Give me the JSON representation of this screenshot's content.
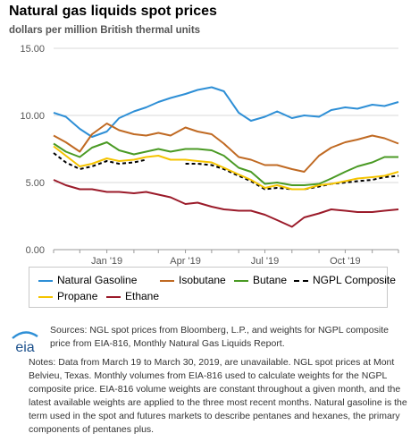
{
  "header": {
    "title": "Natural gas liquids spot prices",
    "subtitle": "dollars per million British thermal units"
  },
  "chart_data": {
    "type": "line",
    "title": "Natural gas liquids spot prices",
    "ylabel": "dollars per million British thermal units",
    "ylim": [
      0,
      15
    ],
    "yticks": [
      "0.00",
      "5.00",
      "10.00",
      "15.00"
    ],
    "xticks": [
      "Jan '19",
      "Apr '19",
      "Jul '19",
      "Oct '19"
    ],
    "grid": true,
    "legend_position": "bottom",
    "x": [
      "2018-11-01",
      "2018-11-15",
      "2018-12-01",
      "2018-12-15",
      "2019-01-01",
      "2019-01-15",
      "2019-02-01",
      "2019-02-15",
      "2019-03-01",
      "2019-03-15",
      "2019-04-01",
      "2019-04-15",
      "2019-05-01",
      "2019-05-15",
      "2019-06-01",
      "2019-06-15",
      "2019-07-01",
      "2019-07-15",
      "2019-08-01",
      "2019-08-15",
      "2019-09-01",
      "2019-09-15",
      "2019-10-01",
      "2019-10-15",
      "2019-11-01",
      "2019-11-15",
      "2019-12-01"
    ],
    "series": [
      {
        "name": "Natural Gasoline",
        "color": "#2e8fd6",
        "dash": "",
        "values": [
          10.2,
          9.9,
          9.0,
          8.4,
          8.8,
          9.8,
          10.3,
          10.6,
          11.0,
          11.3,
          11.6,
          11.9,
          12.1,
          11.8,
          10.2,
          9.6,
          9.9,
          10.3,
          9.8,
          10.0,
          9.9,
          10.4,
          10.6,
          10.5,
          10.8,
          10.7,
          11.0
        ]
      },
      {
        "name": "Isobutane",
        "color": "#c06a23",
        "dash": "",
        "values": [
          8.5,
          8.0,
          7.3,
          8.6,
          9.4,
          8.9,
          8.6,
          8.5,
          8.7,
          8.5,
          9.1,
          8.8,
          8.6,
          7.9,
          6.9,
          6.7,
          6.3,
          6.3,
          6.0,
          5.8,
          7.0,
          7.6,
          8.0,
          8.2,
          8.5,
          8.3,
          7.9
        ]
      },
      {
        "name": "Butane",
        "color": "#4a9a24",
        "dash": "",
        "values": [
          7.9,
          7.3,
          6.9,
          7.6,
          8.0,
          7.4,
          7.1,
          7.3,
          7.5,
          7.3,
          7.5,
          7.5,
          7.4,
          7.0,
          6.1,
          5.8,
          4.9,
          5.0,
          4.8,
          4.8,
          4.9,
          5.3,
          5.8,
          6.2,
          6.5,
          6.9,
          6.9
        ]
      },
      {
        "name": "NGPL Composite",
        "color": "#000000",
        "dash": "4,3",
        "values": [
          7.2,
          6.5,
          6.0,
          6.2,
          6.6,
          6.4,
          6.5,
          6.7,
          null,
          null,
          6.4,
          6.4,
          6.3,
          6.0,
          5.5,
          5.1,
          4.5,
          4.6,
          4.5,
          4.5,
          4.7,
          4.9,
          5.0,
          5.1,
          5.2,
          5.4,
          5.5
        ]
      },
      {
        "name": "Propane",
        "color": "#f5c400",
        "dash": "",
        "values": [
          7.7,
          7.0,
          6.2,
          6.4,
          6.8,
          6.6,
          6.7,
          6.9,
          7.0,
          6.7,
          6.7,
          6.6,
          6.5,
          6.1,
          5.6,
          5.2,
          4.6,
          4.8,
          4.5,
          4.5,
          4.8,
          4.9,
          5.1,
          5.3,
          5.4,
          5.5,
          5.8
        ]
      },
      {
        "name": "Ethane",
        "color": "#9b1b2a",
        "dash": "",
        "values": [
          5.2,
          4.8,
          4.5,
          4.5,
          4.3,
          4.3,
          4.2,
          4.3,
          4.1,
          3.9,
          3.4,
          3.5,
          3.2,
          3.0,
          2.9,
          2.9,
          2.6,
          2.2,
          1.7,
          2.4,
          2.7,
          3.0,
          2.9,
          2.8,
          2.8,
          2.9,
          3.0
        ]
      }
    ]
  },
  "legend": {
    "items": [
      {
        "label": "Natural Gasoline",
        "color": "#2e8fd6",
        "dashed": false
      },
      {
        "label": "Isobutane",
        "color": "#c06a23",
        "dashed": false
      },
      {
        "label": "Butane",
        "color": "#4a9a24",
        "dashed": false
      },
      {
        "label": "NGPL Composite",
        "color": "#000000",
        "dashed": true
      },
      {
        "label": "Propane",
        "color": "#f5c400",
        "dashed": false
      },
      {
        "label": "Ethane",
        "color": "#9b1b2a",
        "dashed": false
      }
    ]
  },
  "footer": {
    "logo_text": "eia",
    "sources": "Sources: NGL spot prices from Bloomberg, L.P., and weights for NGPL composite price from EIA-816, Monthly Natural Gas Liquids Report.",
    "notes": "Notes: Data from March 19 to March 30, 2019, are unavailable. NGL spot prices at Mont Belvieu, Texas. Monthly volumes from EIA-816 used to calculate weights for the NGPL composite price. EIA-816 volume weights are constant throughout a given month, and the latest available weights are applied to the three most recent months. Natural gasoline is the term used in the spot and futures markets to describe pentanes and hexanes, the primary components of pentanes plus."
  }
}
